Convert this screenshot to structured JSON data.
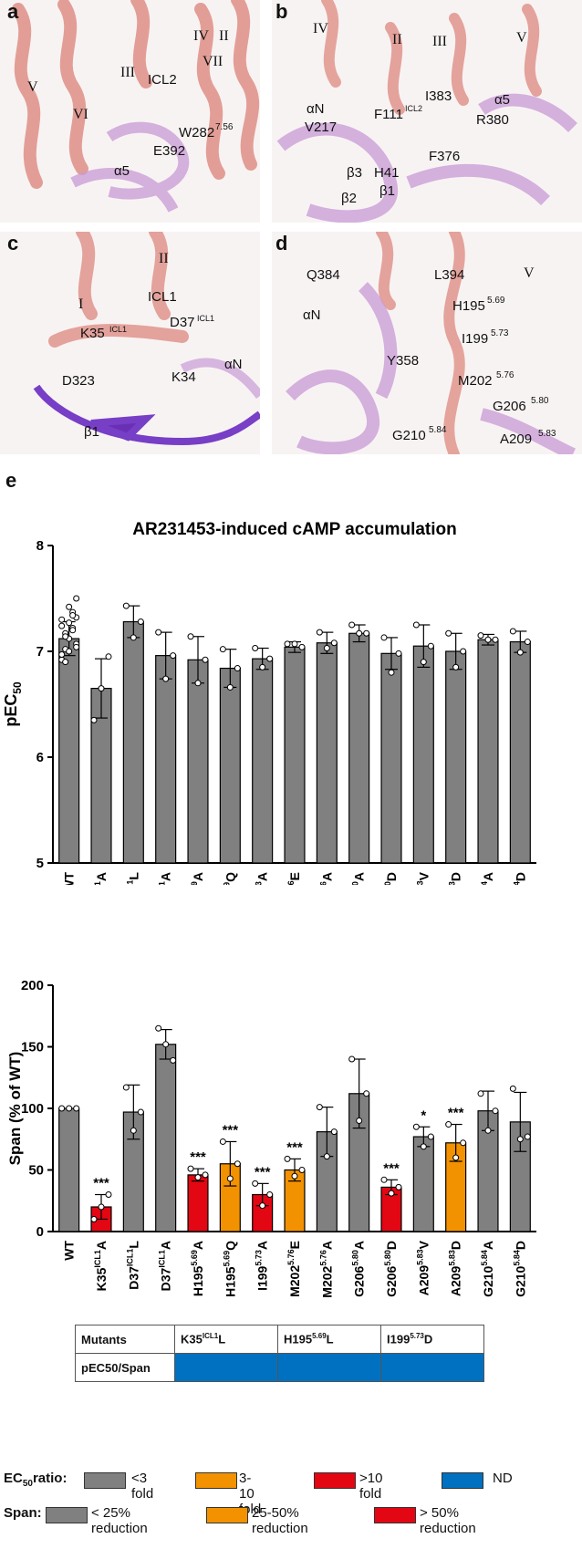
{
  "panels": {
    "a": {
      "label": "a",
      "helices": [
        "IV",
        "II",
        "III",
        "VII",
        "V",
        "VI"
      ],
      "residues": [
        "ICL2",
        "W282",
        "7.56",
        "E392",
        "α5"
      ]
    },
    "b": {
      "label": "b",
      "helices": [
        "IV",
        "II",
        "III",
        "V"
      ],
      "residues": [
        "αN",
        "I383",
        "α5",
        "F111",
        "ICL2",
        "R380",
        "V217",
        "F376",
        "β3",
        "H41",
        "β2",
        "β1"
      ]
    },
    "c": {
      "label": "c",
      "helices": [
        "I",
        "II"
      ],
      "residues": [
        "ICL1",
        "K35",
        "ICL1",
        "D37",
        "ICL1",
        "D323",
        "K34",
        "αN",
        "β1"
      ]
    },
    "d": {
      "label": "d",
      "helices": [
        "V"
      ],
      "residues": [
        "Q384",
        "L394",
        "αN",
        "H195",
        "5.69",
        "I199",
        "5.73",
        "Y358",
        "M202",
        "5.76",
        "G206",
        "5.80",
        "G210",
        "5.84",
        "A209",
        "5.83"
      ]
    }
  },
  "panel_e_label": "e",
  "colors": {
    "grey": "#808080",
    "orange": "#f39200",
    "red": "#e30613",
    "blue": "#0070c0"
  },
  "chart_data": [
    {
      "type": "bar",
      "title": "AR231453-induced cAMP accumulation",
      "ylabel": "pEC50",
      "ylim": [
        5,
        8
      ],
      "yticks": [
        "5",
        "6",
        "7",
        "8"
      ],
      "categories": [
        "WT",
        "K35ICL1A",
        "D37ICL1L",
        "D37ICL1A",
        "H1955.69A",
        "H1955.69Q",
        "I1995.73A",
        "M2025.76E",
        "M2025.76A",
        "G2065.80A",
        "G2065.80D",
        "A2095.83V",
        "A2095.83D",
        "G2105.84A",
        "G2105.84D"
      ],
      "values": [
        7.12,
        6.65,
        7.28,
        6.96,
        6.92,
        6.84,
        6.93,
        7.04,
        7.08,
        7.17,
        6.98,
        7.05,
        7.0,
        7.11,
        7.09
      ],
      "colors": [
        "grey",
        "grey",
        "grey",
        "grey",
        "grey",
        "grey",
        "grey",
        "grey",
        "grey",
        "grey",
        "grey",
        "grey",
        "grey",
        "grey",
        "grey"
      ]
    },
    {
      "type": "bar",
      "title": "",
      "ylabel": "Span (% of WT)",
      "ylim": [
        0,
        200
      ],
      "yticks": [
        "0",
        "50",
        "100",
        "150",
        "200"
      ],
      "categories": [
        "WT",
        "K35ICL1A",
        "D37ICL1L",
        "D37ICL1A",
        "H1955.69A",
        "H1955.69Q",
        "I1995.73A",
        "M2025.76E",
        "M2025.76A",
        "G2065.80A",
        "G2065.80D",
        "A2095.83V",
        "A2095.83D",
        "G2105.84A",
        "G2105.84D"
      ],
      "values": [
        100,
        20,
        97,
        152,
        46,
        55,
        30,
        50,
        81,
        112,
        36,
        77,
        72,
        98,
        89
      ],
      "colors": [
        "grey",
        "red",
        "grey",
        "grey",
        "red",
        "orange",
        "red",
        "orange",
        "grey",
        "grey",
        "red",
        "grey",
        "orange",
        "grey",
        "grey"
      ],
      "significance": [
        "",
        "***",
        "",
        "",
        "***",
        "***",
        "***",
        "***",
        "",
        "",
        "***",
        "*",
        "***",
        "",
        ""
      ]
    }
  ],
  "tick_labels": [
    {
      "base": "WT",
      "sup": "",
      "tail": ""
    },
    {
      "base": "K35",
      "sup": "ICL1",
      "tail": "A"
    },
    {
      "base": "D37",
      "sup": "ICL1",
      "tail": "L"
    },
    {
      "base": "D37",
      "sup": "ICL1",
      "tail": "A"
    },
    {
      "base": "H195",
      "sup": "5.69",
      "tail": "A"
    },
    {
      "base": "H195",
      "sup": "5.69",
      "tail": "Q"
    },
    {
      "base": "I199",
      "sup": "5.73",
      "tail": "A"
    },
    {
      "base": "M202",
      "sup": "5.76",
      "tail": "E"
    },
    {
      "base": "M202",
      "sup": "5.76",
      "tail": "A"
    },
    {
      "base": "G206",
      "sup": "5.80",
      "tail": "A"
    },
    {
      "base": "G206",
      "sup": "5.80",
      "tail": "D"
    },
    {
      "base": "A209",
      "sup": "5.83",
      "tail": "V"
    },
    {
      "base": "A209",
      "sup": "5.83",
      "tail": "D"
    },
    {
      "base": "G210",
      "sup": "5.84",
      "tail": "A"
    },
    {
      "base": "G210",
      "sup": "5.84",
      "tail": "D"
    }
  ],
  "table": {
    "header": "Mutants",
    "row_label": "pEC50/Span",
    "mutants": [
      {
        "base": "K35",
        "sup": "ICL1",
        "tail": "L"
      },
      {
        "base": "H195",
        "sup": "5.69",
        "tail": "L"
      },
      {
        "base": "I199",
        "sup": "5.73",
        "tail": "D"
      }
    ]
  },
  "legend": {
    "ec50_title": "EC",
    "ec50_sub": "50",
    "ec50_suffix": "ratio:",
    "ec50_items": [
      "<3 fold",
      "3-10 fold",
      ">10 fold",
      "ND"
    ],
    "span_title": "Span:",
    "span_items": [
      "< 25% reduction",
      "25-50% reduction",
      "> 50% reduction"
    ]
  }
}
